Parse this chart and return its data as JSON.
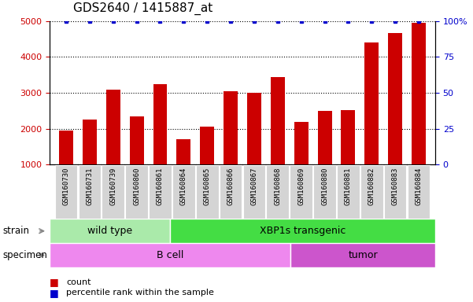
{
  "title": "GDS2640 / 1415887_at",
  "samples": [
    "GSM160730",
    "GSM160731",
    "GSM160739",
    "GSM160860",
    "GSM160861",
    "GSM160864",
    "GSM160865",
    "GSM160866",
    "GSM160867",
    "GSM160868",
    "GSM160869",
    "GSM160880",
    "GSM160881",
    "GSM160882",
    "GSM160883",
    "GSM160884"
  ],
  "counts": [
    1950,
    2250,
    3100,
    2350,
    3250,
    1700,
    2050,
    3050,
    3000,
    3450,
    2200,
    2500,
    2520,
    4400,
    4660,
    4950
  ],
  "percentiles": [
    100,
    100,
    100,
    100,
    100,
    100,
    100,
    100,
    100,
    100,
    100,
    100,
    100,
    100,
    100,
    100
  ],
  "bar_color": "#cc0000",
  "dot_color": "#0000cc",
  "ylim_left": [
    1000,
    5000
  ],
  "ylim_right": [
    0,
    100
  ],
  "yticks_left": [
    1000,
    2000,
    3000,
    4000,
    5000
  ],
  "yticks_right": [
    0,
    25,
    50,
    75,
    100
  ],
  "yticklabels_right": [
    "0",
    "25",
    "50",
    "75",
    "100%"
  ],
  "strain_groups": [
    {
      "label": "wild type",
      "start": 0,
      "end": 5,
      "color": "#aaeaaa"
    },
    {
      "label": "XBP1s transgenic",
      "start": 5,
      "end": 16,
      "color": "#44dd44"
    }
  ],
  "specimen_groups": [
    {
      "label": "B cell",
      "start": 0,
      "end": 10,
      "color": "#ee88ee"
    },
    {
      "label": "tumor",
      "start": 10,
      "end": 16,
      "color": "#cc55cc"
    }
  ],
  "strain_label": "strain",
  "specimen_label": "specimen",
  "legend_count_label": "count",
  "legend_pct_label": "percentile rank within the sample",
  "tick_color_left": "#cc0000",
  "tick_color_right": "#0000cc",
  "title_fontsize": 11,
  "sample_fontsize": 6.5,
  "group_fontsize": 9,
  "ticklabel_bg": "#cccccc"
}
